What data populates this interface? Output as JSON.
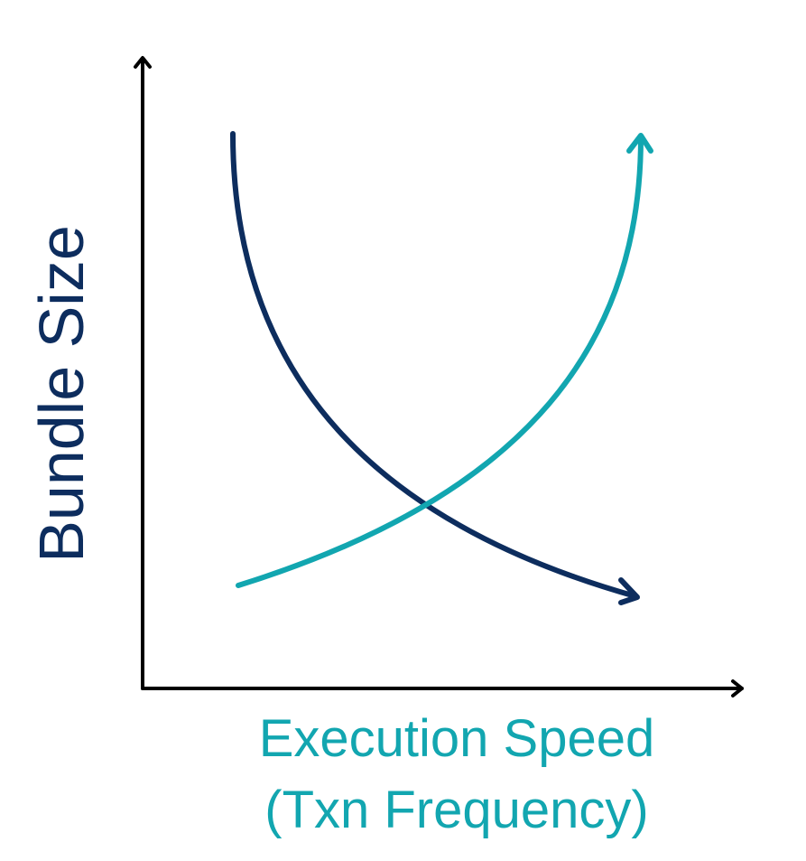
{
  "labels": {
    "y_axis": "Bundle Size",
    "x_axis_line1": "Execution Speed",
    "x_axis_line2": "(Txn Frequency)"
  },
  "colors": {
    "axis": "#000000",
    "navy": "#0d2d5e",
    "teal": "#12a6b0"
  },
  "curves": [
    {
      "name": "decreasing-curve",
      "color_key": "navy",
      "direction": "down-right"
    },
    {
      "name": "increasing-curve",
      "color_key": "teal",
      "direction": "up-right"
    }
  ]
}
